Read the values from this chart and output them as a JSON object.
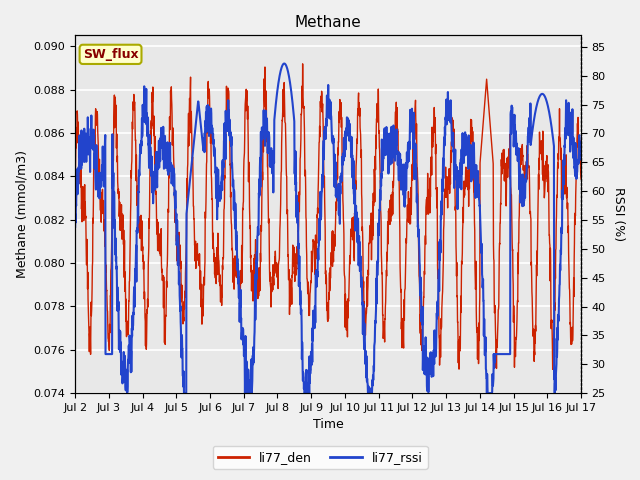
{
  "title": "Methane",
  "xlabel": "Time",
  "ylabel_left": "Methane (mmol/m3)",
  "ylabel_right": "RSSI (%)",
  "xlim": [
    0,
    15
  ],
  "ylim_left": [
    0.074,
    0.0905
  ],
  "ylim_right": [
    25,
    87
  ],
  "x_tick_labels": [
    "Jul 2",
    "Jul 3",
    "Jul 4",
    "Jul 5",
    "Jul 6",
    "Jul 7",
    "Jul 8",
    "Jul 9",
    "Jul 10",
    "Jul 11",
    "Jul 12",
    "Jul 13",
    "Jul 14",
    "Jul 15",
    "Jul 16",
    "Jul 17"
  ],
  "x_ticks": [
    0,
    1,
    2,
    3,
    4,
    5,
    6,
    7,
    8,
    9,
    10,
    11,
    12,
    13,
    14,
    15
  ],
  "yticks_left": [
    0.074,
    0.076,
    0.078,
    0.08,
    0.082,
    0.084,
    0.086,
    0.088,
    0.09
  ],
  "yticks_right": [
    25,
    30,
    35,
    40,
    45,
    50,
    55,
    60,
    65,
    70,
    75,
    80,
    85
  ],
  "background_color": "#e8e8e8",
  "grid_color": "#ffffff",
  "line_color_den": "#cc2200",
  "line_color_rssi": "#2244cc",
  "legend_label_den": "li77_den",
  "legend_label_rssi": "li77_rssi",
  "span_label": "SW_flux",
  "figsize": [
    6.4,
    4.8
  ],
  "dpi": 100
}
